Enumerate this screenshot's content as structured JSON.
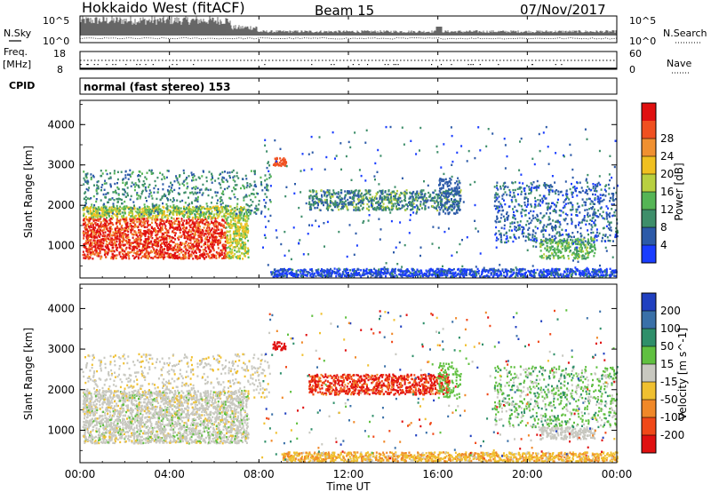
{
  "header": {
    "title": "Hokkaido West (fitACF)",
    "beam": "Beam 15",
    "date": "07/Nov/2017"
  },
  "noise_panel": {
    "left_label": "N.Sky",
    "right_label": "N.Search",
    "left_ticks": [
      "10^5",
      "10^0"
    ],
    "right_ticks": [
      "10^5",
      "10^0"
    ]
  },
  "freq_panel": {
    "label_line1": "Freq.",
    "label_line2": "[MHz]",
    "left_ticks": [
      "18",
      "8"
    ],
    "right_ticks": [
      "60",
      "0"
    ],
    "right_label": "Nave"
  },
  "cpid_panel": {
    "label": "CPID",
    "text": "normal (fast stereo) 153"
  },
  "chart_data": [
    {
      "type": "heatmap",
      "name": "power",
      "ylabel": "Slant Range [km]",
      "yticks": [
        "1000",
        "2000",
        "3000",
        "4000"
      ],
      "ylim": [
        200,
        4600
      ],
      "xlim": [
        0,
        24
      ],
      "colorbar_label": "Power [dB]",
      "colorbar_ticks": [
        "4",
        "8",
        "12",
        "16",
        "20",
        "24",
        "28"
      ],
      "colorbar_range": [
        0,
        32
      ],
      "colors": [
        "#1a3dff",
        "#2c5aa8",
        "#3e8e6a",
        "#55b555",
        "#b8d040",
        "#f0c020",
        "#f09030",
        "#f05020",
        "#e01010"
      ]
    },
    {
      "type": "heatmap",
      "name": "velocity",
      "ylabel": "Slant Range [km]",
      "yticks": [
        "1000",
        "2000",
        "3000",
        "4000"
      ],
      "ylim": [
        200,
        4600
      ],
      "xlim": [
        0,
        24
      ],
      "colorbar_label": "Velocity [m s^-1]",
      "colorbar_ticks": [
        "200",
        "100",
        "50",
        "15",
        "-15",
        "-50",
        "-100",
        "-200"
      ],
      "colorbar_range": [
        -250,
        250
      ],
      "colors": [
        "#2040c0",
        "#3a70a8",
        "#2f8f6a",
        "#60c040",
        "#c8c8c0",
        "#f0c030",
        "#f08828",
        "#f04818",
        "#e01010"
      ]
    }
  ],
  "xaxis": {
    "ticks": [
      "00:00",
      "04:00",
      "08:00",
      "12:00",
      "16:00",
      "20:00",
      "00:00"
    ],
    "label": "Time UT"
  }
}
